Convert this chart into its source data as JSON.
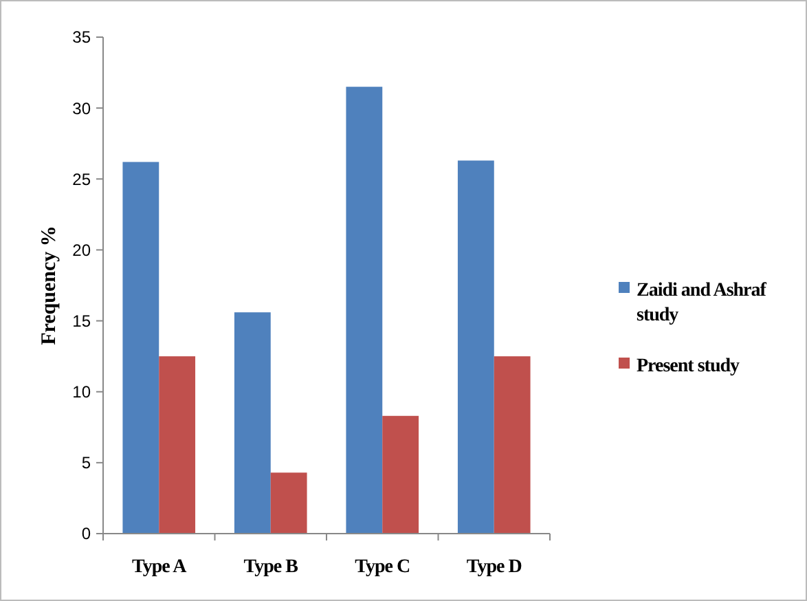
{
  "chart_data": {
    "type": "bar",
    "ylabel": "Frequency %",
    "categories": [
      "Type A",
      "Type B",
      "Type C",
      "Type D"
    ],
    "series": [
      {
        "name": "Zaidi and Ashraf study",
        "color": "#4f81bd",
        "values": [
          26.2,
          15.6,
          31.5,
          26.3
        ]
      },
      {
        "name": "Present study",
        "color": "#c0504d",
        "values": [
          12.5,
          4.3,
          8.3,
          12.5
        ]
      }
    ],
    "ylim": [
      0,
      35
    ],
    "yticks": [
      0,
      5,
      10,
      15,
      20,
      25,
      30,
      35
    ],
    "grid": false,
    "legend": "right"
  }
}
